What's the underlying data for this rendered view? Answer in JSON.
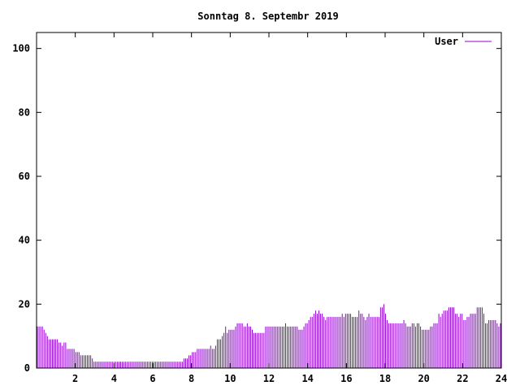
{
  "chart_data": {
    "type": "bar",
    "title": "Sonntag 8. Septembr 2019",
    "legend": {
      "label": "User",
      "position": "top-right",
      "color": "#9400d3"
    },
    "xlim": [
      0,
      24
    ],
    "ylim": [
      0,
      105
    ],
    "x_ticks": [
      2,
      4,
      6,
      8,
      10,
      12,
      14,
      16,
      18,
      20,
      22,
      24
    ],
    "y_ticks": [
      0,
      20,
      40,
      60,
      80,
      100
    ],
    "bar_color": "#9400d3",
    "series": [
      {
        "name": "User",
        "x_step_hours": 0.0833,
        "values": [
          13,
          13,
          13,
          13,
          12,
          11,
          10,
          9,
          9,
          9,
          9,
          9,
          9,
          8,
          8,
          7,
          8,
          8,
          6,
          6,
          6,
          6,
          6,
          5,
          5,
          5,
          4,
          4,
          4,
          4,
          4,
          4,
          4,
          3,
          2,
          2,
          2,
          2,
          2,
          2,
          2,
          2,
          2,
          2,
          2,
          2,
          2,
          2,
          2,
          2,
          2,
          2,
          2,
          2,
          2,
          2,
          2,
          2,
          2,
          2,
          2,
          2,
          2,
          2,
          2,
          2,
          2,
          2,
          2,
          2,
          2,
          2,
          2,
          2,
          2,
          2,
          2,
          2,
          2,
          2,
          2,
          2,
          2,
          2,
          2,
          2,
          2,
          2,
          3,
          3,
          3,
          4,
          4,
          5,
          5,
          5,
          6,
          6,
          6,
          6,
          6,
          6,
          6,
          6,
          7,
          6,
          6,
          7,
          9,
          9,
          9,
          10,
          11,
          13,
          11,
          12,
          12,
          12,
          12,
          13,
          14,
          14,
          14,
          14,
          13,
          13,
          14,
          13,
          13,
          12,
          11,
          11,
          11,
          11,
          11,
          11,
          11,
          13,
          13,
          13,
          13,
          13,
          13,
          13,
          13,
          13,
          13,
          13,
          13,
          14,
          13,
          13,
          13,
          13,
          13,
          13,
          13,
          12,
          12,
          12,
          13,
          14,
          14,
          15,
          16,
          16,
          17,
          18,
          17,
          18,
          17,
          17,
          16,
          15,
          16,
          16,
          16,
          16,
          16,
          16,
          16,
          16,
          16,
          17,
          16,
          17,
          17,
          17,
          17,
          16,
          16,
          16,
          16,
          18,
          17,
          17,
          16,
          15,
          16,
          17,
          16,
          16,
          16,
          16,
          16,
          16,
          19,
          19,
          20,
          17,
          15,
          14,
          14,
          14,
          14,
          14,
          14,
          14,
          14,
          14,
          15,
          14,
          13,
          13,
          13,
          14,
          14,
          13,
          14,
          14,
          13,
          12,
          12,
          12,
          12,
          12,
          13,
          13,
          14,
          14,
          14,
          17,
          16,
          17,
          18,
          18,
          18,
          19,
          19,
          19,
          19,
          17,
          17,
          16,
          17,
          17,
          15,
          15,
          16,
          16,
          17,
          17,
          17,
          17,
          19,
          19,
          19,
          19,
          17,
          14,
          14,
          15,
          15,
          15,
          15,
          15,
          14,
          13,
          14
        ]
      }
    ]
  }
}
